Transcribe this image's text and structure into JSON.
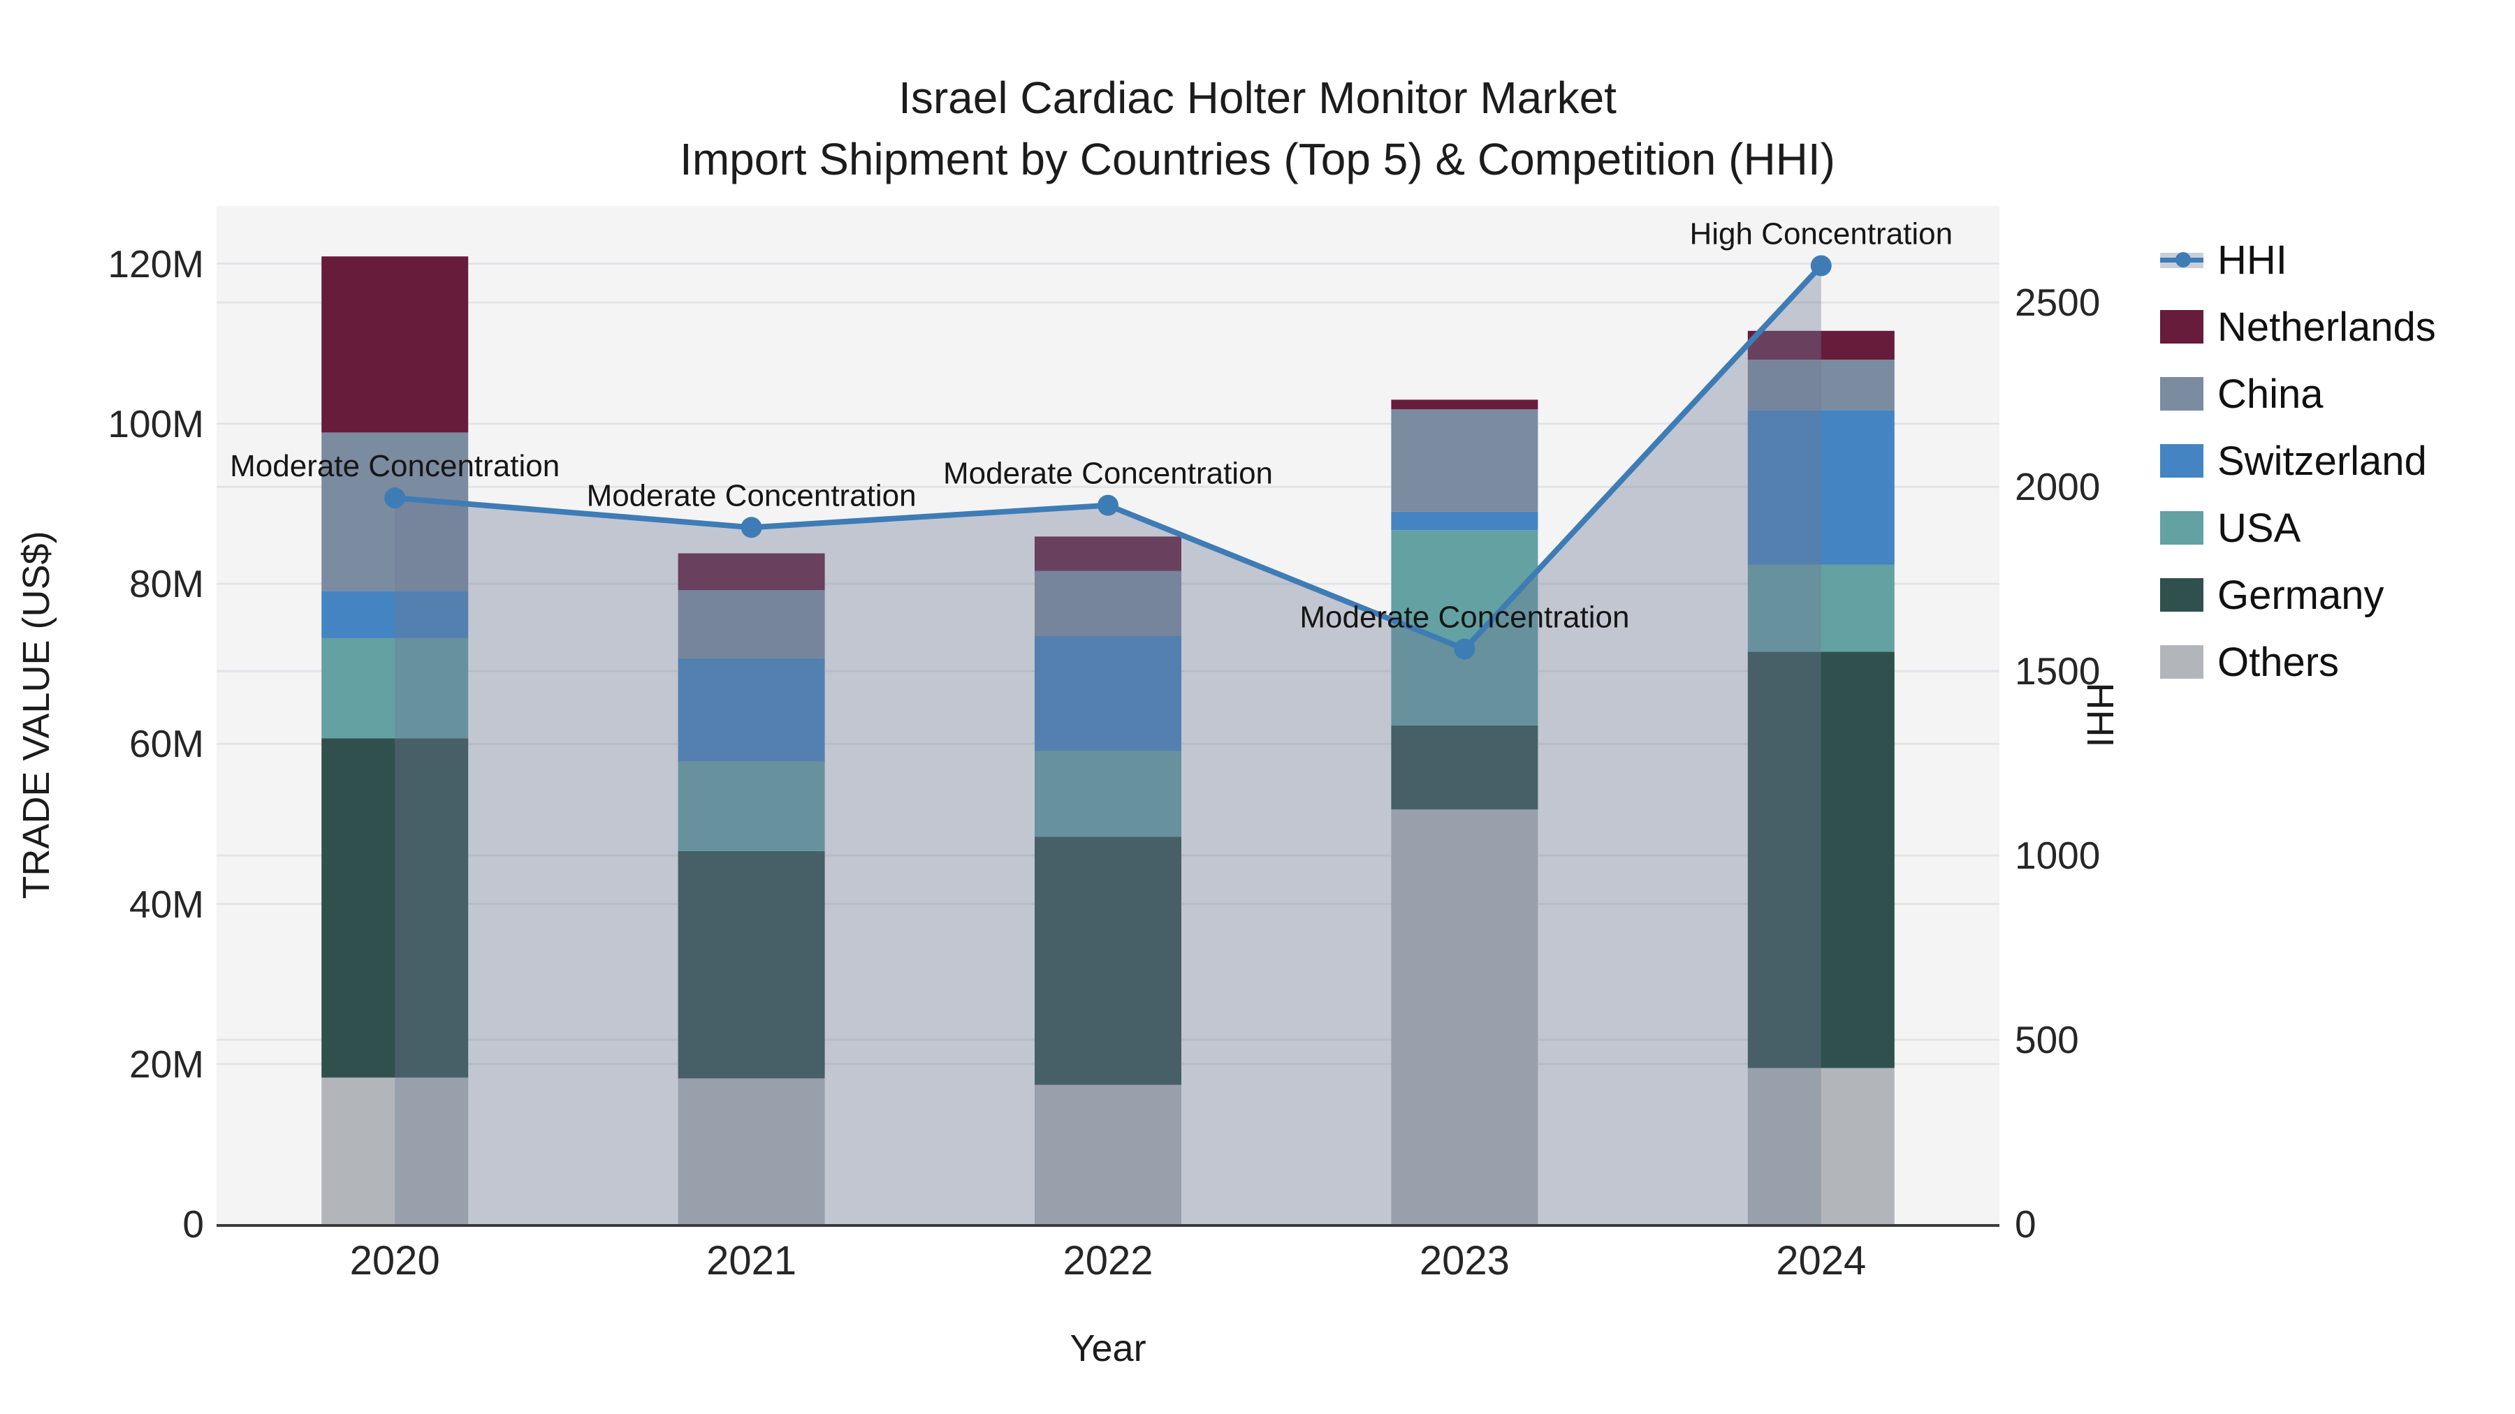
{
  "title": {
    "line1": "Israel Cardiac Holter Monitor Market",
    "line2": "Import Shipment by Countries (Top 5) & Competition (HHI)"
  },
  "axes": {
    "left": {
      "title": "TRADE VALUE (US$)",
      "tick_labels": [
        "0",
        "20M",
        "40M",
        "60M",
        "80M",
        "100M",
        "120M"
      ],
      "tick_values": [
        0,
        20,
        40,
        60,
        80,
        100,
        120
      ],
      "max": 127.2
    },
    "right": {
      "title": "HHI",
      "tick_labels": [
        "0",
        "500",
        "1000",
        "1500",
        "2000",
        "2500"
      ],
      "tick_values": [
        0,
        500,
        1000,
        1500,
        2000,
        2500
      ],
      "max": 2762
    },
    "x": {
      "title": "Year",
      "categories": [
        "2020",
        "2021",
        "2022",
        "2023",
        "2024"
      ]
    }
  },
  "legend": {
    "items": [
      {
        "key": "hhi",
        "label": "HHI",
        "type": "line",
        "color": "#3E7CB6"
      },
      {
        "key": "netherlands",
        "label": "Netherlands",
        "type": "square",
        "color": "#671C3C"
      },
      {
        "key": "china",
        "label": "China",
        "type": "square",
        "color": "#7B8BA0"
      },
      {
        "key": "switzerland",
        "label": "Switzerland",
        "type": "square",
        "color": "#4584C2"
      },
      {
        "key": "usa",
        "label": "USA",
        "type": "square",
        "color": "#63A1A3"
      },
      {
        "key": "germany",
        "label": "Germany",
        "type": "square",
        "color": "#30504E"
      },
      {
        "key": "others",
        "label": "Others",
        "type": "square",
        "color": "#B2B6BB"
      }
    ]
  },
  "chart_data": {
    "type": "bar",
    "stacked": true,
    "title": "Israel Cardiac Holter Monitor Market — Import Shipment by Countries (Top 5) & Competition (HHI)",
    "xlabel": "Year",
    "ylabel": "TRADE VALUE (US$)",
    "y2label": "HHI",
    "ylim": [
      0,
      127.2
    ],
    "y2lim": [
      0,
      2762
    ],
    "grid": true,
    "legend_position": "right",
    "categories": [
      "2020",
      "2021",
      "2022",
      "2023",
      "2024"
    ],
    "value_unit": "M US$",
    "series": [
      {
        "name": "Others",
        "color": "#B2B6BB",
        "values": [
          18.3,
          18.2,
          17.4,
          51.8,
          19.5
        ]
      },
      {
        "name": "Germany",
        "color": "#30504E",
        "values": [
          42.4,
          28.4,
          31.0,
          10.5,
          52.0
        ]
      },
      {
        "name": "USA",
        "color": "#63A1A3",
        "values": [
          12.5,
          11.2,
          10.7,
          24.4,
          10.9
        ]
      },
      {
        "name": "Switzerland",
        "color": "#4584C2",
        "values": [
          5.9,
          12.9,
          14.4,
          2.3,
          19.3
        ]
      },
      {
        "name": "China",
        "color": "#7B8BA0",
        "values": [
          19.8,
          8.5,
          8.1,
          12.8,
          6.3
        ]
      },
      {
        "name": "Netherlands",
        "color": "#671C3C",
        "values": [
          22.0,
          4.6,
          4.3,
          1.2,
          3.6
        ]
      }
    ],
    "totals": [
      121.0,
      83.8,
      85.9,
      103.0,
      111.6
    ],
    "line_series": {
      "name": "HHI",
      "axis": "right",
      "color": "#3E7CB6",
      "area_fill": "rgba(110,124,148,0.38)",
      "values": [
        1970,
        1890,
        1950,
        1560,
        2600
      ]
    },
    "annotations": [
      {
        "category": "2020",
        "text": "Moderate Concentration"
      },
      {
        "category": "2021",
        "text": "Moderate Concentration"
      },
      {
        "category": "2022",
        "text": "Moderate Concentration"
      },
      {
        "category": "2023",
        "text": "Moderate Concentration"
      },
      {
        "category": "2024",
        "text": "High Concentration"
      }
    ],
    "colors": {
      "plot_background": "#F5F4F5",
      "gridline": "#E4E4E7",
      "axis_line": "#3B3B3B",
      "text": "#1F1F1F"
    }
  }
}
